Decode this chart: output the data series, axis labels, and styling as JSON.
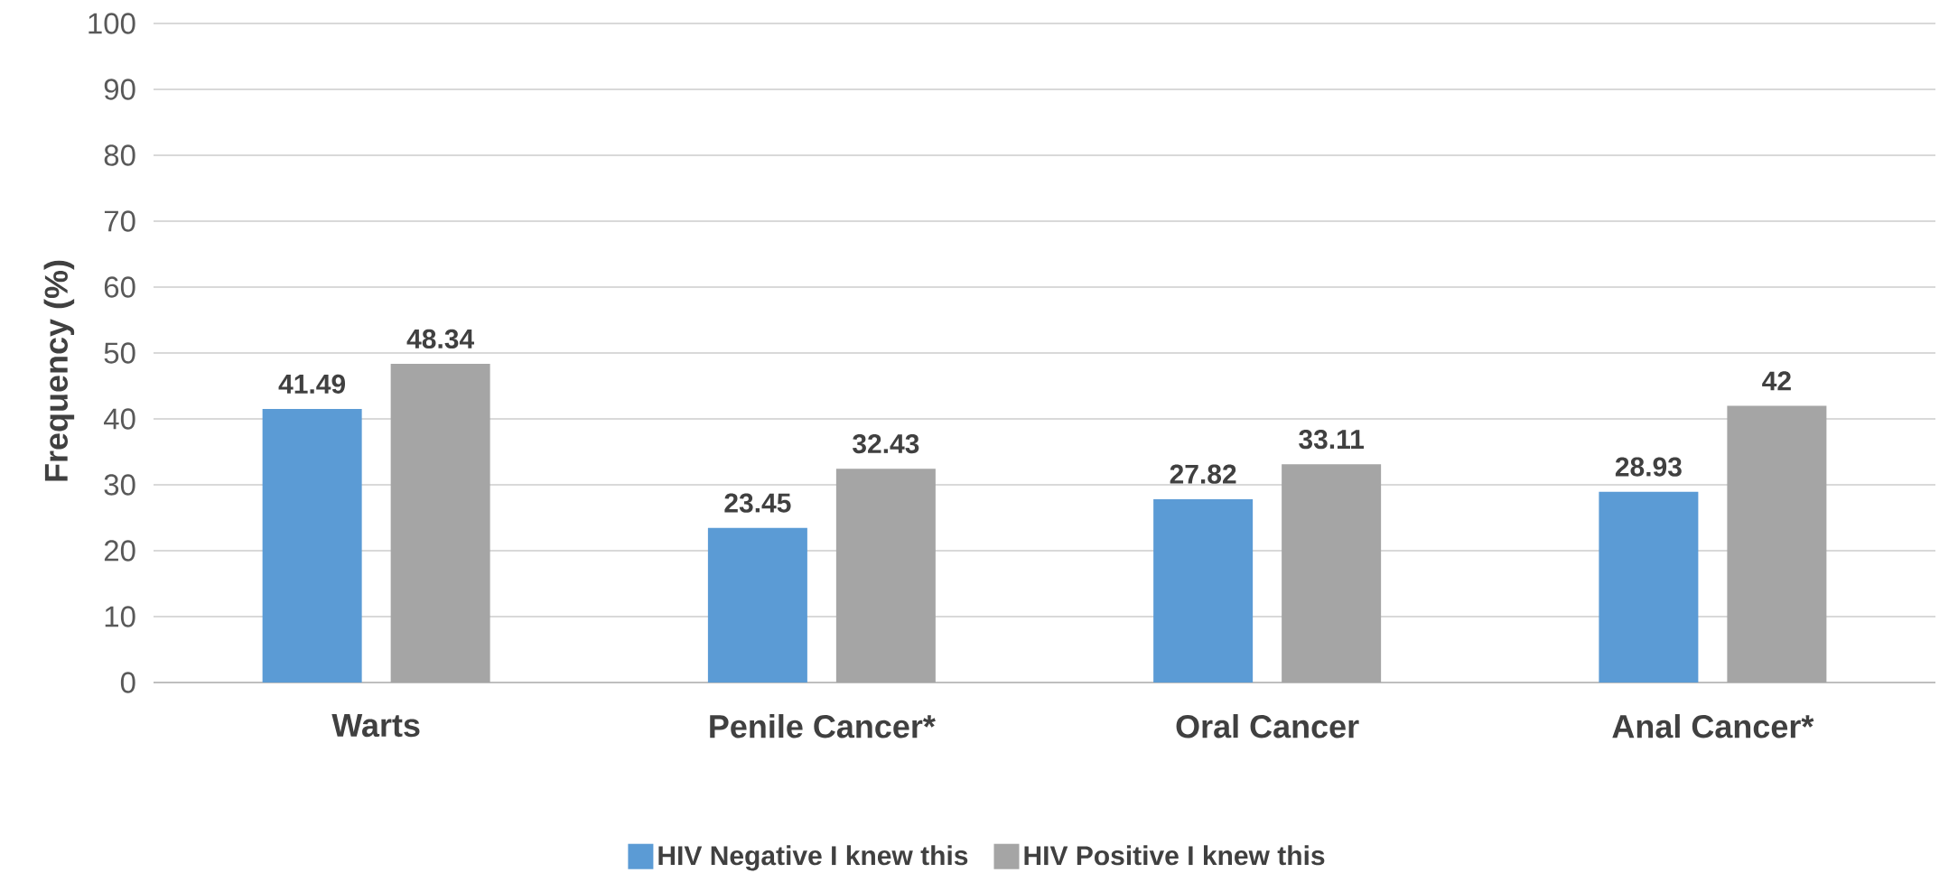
{
  "chart_data": {
    "type": "bar",
    "ylabel": "Frequency (%)",
    "categories": [
      "Warts",
      "Penile Cancer*",
      "Oral Cancer",
      "Anal Cancer*"
    ],
    "series": [
      {
        "name": "HIV Negative I knew this",
        "color": "#5b9bd5",
        "values": [
          41.49,
          23.45,
          27.82,
          28.93
        ]
      },
      {
        "name": "HIV Positive I knew this",
        "color": "#a5a5a5",
        "values": [
          48.34,
          32.43,
          33.11,
          42
        ]
      }
    ],
    "ylim": [
      0,
      100
    ],
    "yticks": [
      0,
      10,
      20,
      30,
      40,
      50,
      60,
      70,
      80,
      90,
      100
    ],
    "grid": "y",
    "legend": "bottom",
    "data_labels": true
  }
}
